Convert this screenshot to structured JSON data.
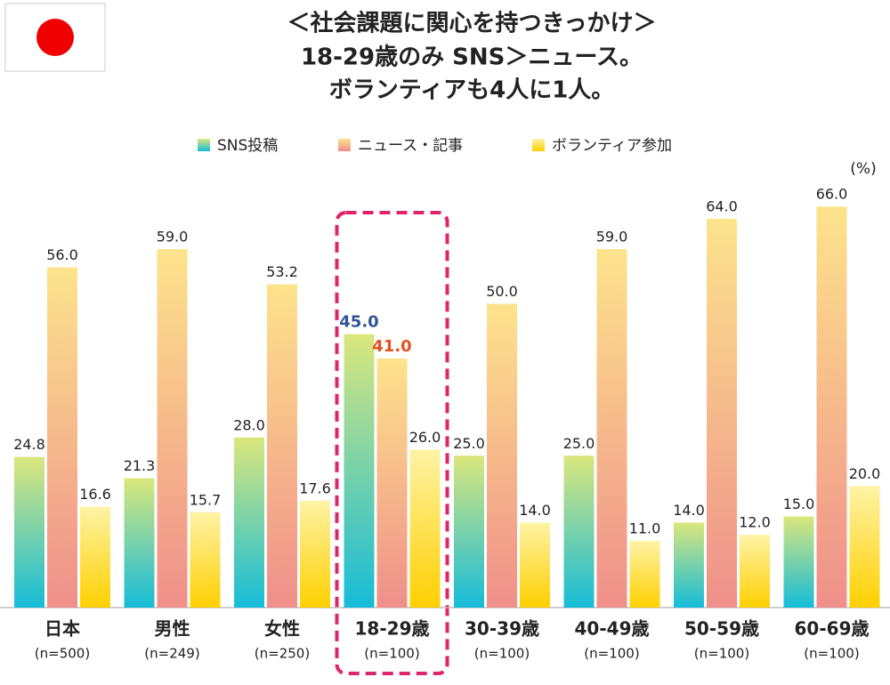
{
  "chart_data": {
    "type": "bar",
    "title": [
      "＜社会課題に関心を持つきっかけ＞",
      "18-29歳のみ SNS＞ニュース。",
      "ボランティアも4人に1人。"
    ],
    "unit": "(%)",
    "categories": [
      "日本",
      "男性",
      "女性",
      "18-29歳",
      "30-39歳",
      "40-49歳",
      "50-59歳",
      "60-69歳"
    ],
    "sample_sizes": [
      "(n=500)",
      "(n=249)",
      "(n=250)",
      "(n=100)",
      "(n=100)",
      "(n=100)",
      "(n=100)",
      "(n=100)"
    ],
    "series": [
      {
        "name": "SNS投稿",
        "gradient": [
          "#15bcd9",
          "#dbe77c"
        ],
        "highlight_label_color": "#2f5597",
        "values": [
          24.8,
          21.3,
          28.0,
          45.0,
          25.0,
          25.0,
          14.0,
          15.0
        ],
        "value_labels": [
          "24.8",
          "21.3",
          "28.0",
          "45.0",
          "25.0",
          "25.0",
          "14.0",
          "15.0"
        ]
      },
      {
        "name": "ニュース・記事",
        "gradient": [
          "#ef8f8a",
          "#fde38c"
        ],
        "highlight_label_color": "#e8501e",
        "values": [
          56.0,
          59.0,
          53.2,
          41.0,
          50.0,
          59.0,
          64.0,
          66.0
        ],
        "value_labels": [
          "56.0",
          "59.0",
          "53.2",
          "41.0",
          "50.0",
          "59.0",
          "64.0",
          "66.0"
        ]
      },
      {
        "name": "ボランティア参加",
        "gradient": [
          "#ffd000",
          "#fff3a6"
        ],
        "values": [
          16.6,
          15.7,
          17.6,
          26.0,
          14.0,
          11.0,
          12.0,
          20.0
        ],
        "value_labels": [
          "16.6",
          "15.7",
          "17.6",
          "26.0",
          "14.0",
          "11.0",
          "12.0",
          "20.0"
        ]
      }
    ],
    "highlight_index": 3,
    "highlight_color": "#e0246a",
    "ylim": [
      0,
      70
    ]
  }
}
